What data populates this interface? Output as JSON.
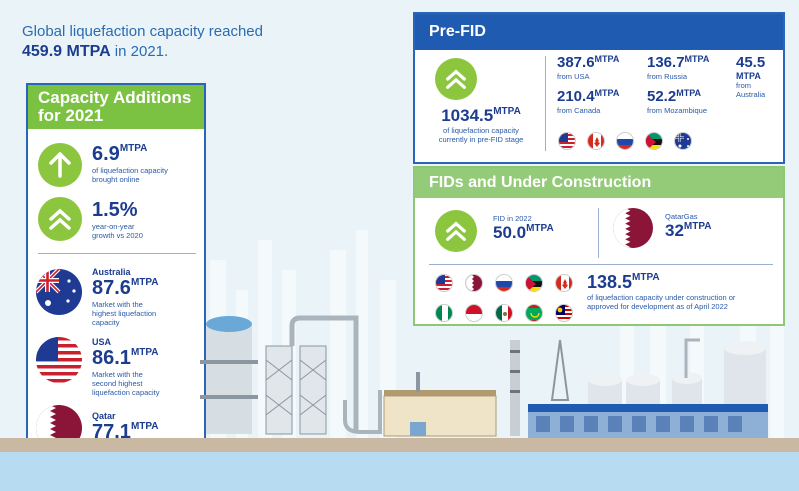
{
  "headline": {
    "line1": "Global liquefaction capacity reached",
    "value": "459.9 MTPA",
    "line2_suffix": " in 2021."
  },
  "additions": {
    "title_line1": "Capacity Additions",
    "title_line2": "for 2021",
    "items": [
      {
        "value": "6.9",
        "unit": "MTPA",
        "desc1": "of liquefaction capacity",
        "desc2": "brought online"
      },
      {
        "value": "1.5%",
        "unit": "",
        "desc1": "year-on-year",
        "desc2": "growth vs 2020"
      }
    ],
    "markets": [
      {
        "country": "Australia",
        "value": "87.6",
        "unit": "MTPA",
        "desc1": "Market with the",
        "desc2": "highest liquefaction",
        "desc3": "capacity"
      },
      {
        "country": "USA",
        "value": "86.1",
        "unit": "MTPA",
        "desc1": "Market with the",
        "desc2": "second highest",
        "desc3": "liquefaction capacity"
      },
      {
        "country": "Qatar",
        "value": "77.1",
        "unit": "MTPA",
        "desc1": "",
        "desc2": "",
        "desc3": ""
      }
    ]
  },
  "prefid": {
    "title": "Pre-FID",
    "total_value": "1034.5",
    "total_unit": "MTPA",
    "total_desc1": "of liquefaction capacity",
    "total_desc2": "currently in pre-FID stage",
    "breakdown": [
      {
        "value": "387.6",
        "unit": "MTPA",
        "desc": "from USA"
      },
      {
        "value": "136.7",
        "unit": "MTPA",
        "desc": "from Russia"
      },
      {
        "value": "45.5",
        "unit": "MTPA",
        "desc": "from Australia"
      },
      {
        "value": "210.4",
        "unit": "MTPA",
        "desc": "from Canada"
      },
      {
        "value": "52.2",
        "unit": "MTPA",
        "desc": "from Mozambique"
      }
    ]
  },
  "fids": {
    "title": "FIDs and  Under Construction",
    "fid_label": "FID in 2022",
    "fid_value": "50.0",
    "fid_unit": "MTPA",
    "qatar_label": "QatarGas",
    "qatar_value": "32",
    "qatar_unit": "MTPA",
    "uc_value": "138.5",
    "uc_unit": "MTPA",
    "uc_desc1": "of liquefaction capacity under construction or",
    "uc_desc2": "approved for development as of April 2022"
  },
  "colors": {
    "navy": "#1c3d8f",
    "green": "#8cc63f",
    "blue_header": "#1f5bb0",
    "light_green_header": "#94cb78"
  },
  "icons": [
    "arrow-up-icon",
    "double-chevron-up-icon",
    "australia-flag-icon",
    "usa-flag-icon",
    "qatar-flag-icon",
    "canada-flag-icon",
    "russia-flag-icon",
    "mozambique-flag-icon",
    "nigeria-flag-icon",
    "indonesia-flag-icon",
    "mexico-flag-icon",
    "mauritania-flag-icon",
    "malaysia-flag-icon"
  ]
}
